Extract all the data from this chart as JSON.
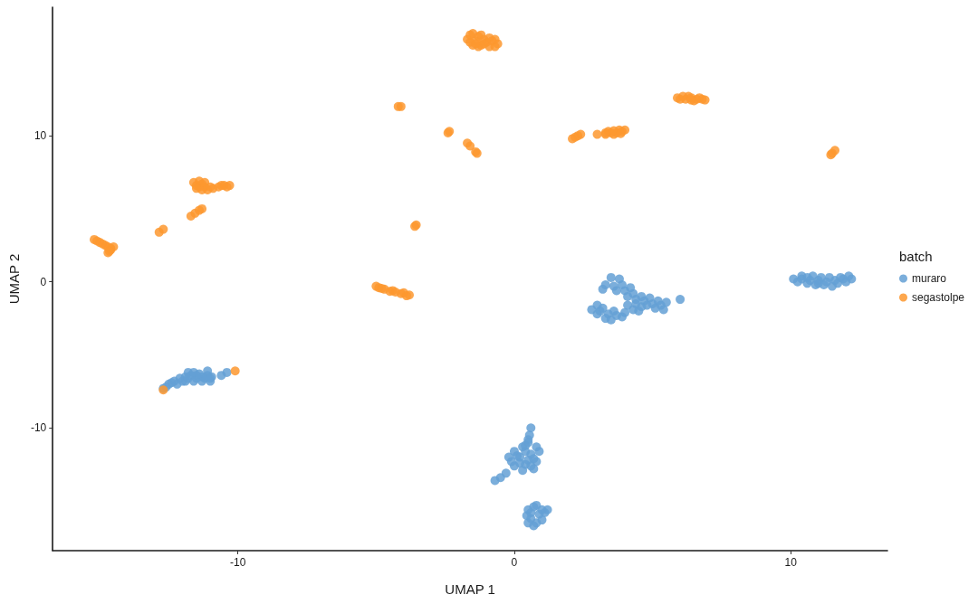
{
  "chart_data": {
    "type": "scatter",
    "xlabel": "UMAP 1",
    "ylabel": "UMAP 2",
    "legend_title": "batch",
    "legend": "right",
    "marker": "circle",
    "grid": false,
    "xlim": [
      -16.7,
      13.5
    ],
    "ylim": [
      -18.4,
      18.8
    ],
    "xticks": [
      -10,
      0,
      10
    ],
    "yticks": [
      -10,
      0,
      10
    ],
    "series": [
      {
        "name": "muraro",
        "color": "#64a0d5",
        "x": [
          -12.7,
          -12.5,
          -12.3,
          -12.1,
          -11.9,
          -11.7,
          -11.5,
          -11.3,
          -11.1,
          -10.95,
          -11.9,
          -11.6,
          -11.3,
          -11.0,
          -12.2,
          -10.6,
          -10.4,
          -11.1,
          -11.8,
          -12.4,
          -12.0,
          -11.8,
          -11.5,
          -11.2,
          -11.0,
          -11.6,
          -11.4,
          -12.6,
          0.6,
          0.55,
          0.5,
          0.3,
          0.0,
          -0.2,
          0.2,
          0.6,
          0.8,
          0.4,
          0.0,
          0.7,
          -0.3,
          -0.5,
          -0.7,
          0.3,
          0.9,
          0.1,
          0.4,
          0.7,
          0.2,
          0.5,
          0.8,
          0.4,
          -0.1,
          0.6,
          0.5,
          0.5,
          0.8,
          1.1,
          0.6,
          1.0,
          0.7,
          0.45,
          1.2,
          0.6,
          0.9,
          0.8,
          0.5,
          1.0,
          0.7,
          3.2,
          3.5,
          3.8,
          3.6,
          4.0,
          4.3,
          4.6,
          4.9,
          5.2,
          5.5,
          5.4,
          4.8,
          2.8,
          3.1,
          3.4,
          3.7,
          4.0,
          4.3,
          4.6,
          3.5,
          3.9,
          3.3,
          3.7,
          4.1,
          4.4,
          4.7,
          5.0,
          5.3,
          3.0,
          3.3,
          3.6,
          4.1,
          4.4,
          5.1,
          3.9,
          4.2,
          3.2,
          4.5,
          3.0,
          6.0,
          10.1,
          10.4,
          10.7,
          11.0,
          11.3,
          11.6,
          11.9,
          12.2,
          10.8,
          11.2,
          11.5,
          11.8,
          10.4,
          10.25,
          10.6,
          10.9,
          11.1,
          11.4,
          11.7,
          12.0,
          10.6,
          11.0,
          12.1
        ],
        "values": [
          -7.3,
          -7.0,
          -6.8,
          -6.6,
          -6.5,
          -6.4,
          -6.4,
          -6.5,
          -6.4,
          -6.5,
          -6.8,
          -6.8,
          -6.8,
          -6.8,
          -7.0,
          -6.4,
          -6.2,
          -6.1,
          -6.2,
          -6.9,
          -6.8,
          -6.6,
          -6.6,
          -6.6,
          -6.6,
          -6.2,
          -6.3,
          -7.2,
          -10.0,
          -10.5,
          -11.0,
          -11.3,
          -11.6,
          -12.0,
          -12.0,
          -11.8,
          -12.3,
          -12.5,
          -12.6,
          -12.8,
          -13.1,
          -13.4,
          -13.6,
          -12.9,
          -11.6,
          -11.9,
          -11.6,
          -12.1,
          -12.4,
          -12.2,
          -11.3,
          -11.2,
          -12.3,
          -12.6,
          -10.8,
          -15.6,
          -15.3,
          -15.8,
          -16.2,
          -16.3,
          -16.7,
          -16.0,
          -15.6,
          -15.8,
          -15.9,
          -16.5,
          -16.5,
          -15.6,
          -15.4,
          -0.5,
          0.3,
          0.2,
          -0.3,
          -0.6,
          -0.8,
          -1.0,
          -1.1,
          -1.3,
          -1.4,
          -1.9,
          -1.6,
          -1.9,
          -2.0,
          -2.2,
          -2.3,
          -2.1,
          -1.9,
          -1.7,
          -2.6,
          -2.4,
          -0.2,
          -0.6,
          -1.0,
          -1.2,
          -1.3,
          -1.5,
          -1.6,
          -2.2,
          -2.5,
          -2.0,
          -1.6,
          -1.5,
          -1.8,
          -0.2,
          -0.4,
          -1.8,
          -2.0,
          -1.6,
          -1.2,
          0.2,
          0.2,
          0.1,
          0.1,
          0.0,
          0.1,
          0.2,
          0.2,
          0.4,
          -0.2,
          -0.3,
          0.3,
          0.4,
          0.0,
          -0.1,
          -0.2,
          0.3,
          0.3,
          -0.1,
          0.0,
          0.3,
          -0.1,
          0.4
        ]
      },
      {
        "name": "segastolpe",
        "color": "#fd982f",
        "x": [
          -1.7,
          -1.5,
          -1.4,
          -1.2,
          -1.0,
          -0.8,
          -0.6,
          -1.3,
          -0.9,
          -1.5,
          -1.6,
          -1.3,
          -1.1,
          -0.7,
          -1.2,
          -1.6,
          -0.9,
          -1.4,
          -0.7,
          -1.1,
          -4.2,
          -4.1,
          -2.4,
          -2.35,
          -1.7,
          -1.6,
          -1.4,
          -1.35,
          -3.6,
          -3.55,
          2.1,
          2.3,
          2.4,
          3.0,
          3.3,
          3.5,
          3.7,
          3.9,
          4.0,
          3.6,
          3.4,
          3.8,
          3.3,
          3.6,
          3.85,
          2.2,
          5.9,
          6.2,
          6.4,
          6.6,
          6.8,
          6.3,
          6.5,
          6.0,
          6.1,
          6.7,
          6.4,
          6.9,
          11.5,
          11.6,
          11.45,
          -11.6,
          -11.5,
          -11.3,
          -11.2,
          -11.1,
          -11.3,
          -10.9,
          -10.7,
          -10.5,
          -10.3,
          -11.4,
          -11.4,
          -11.2,
          -11.5,
          -11.0,
          -10.4,
          -10.6,
          -11.7,
          -11.55,
          -11.4,
          -11.3,
          -12.85,
          -12.7,
          -15.2,
          -15.0,
          -14.8,
          -14.6,
          -14.5,
          -14.7,
          -14.6,
          -15.1,
          -14.9,
          -14.7,
          -14.65,
          -5.0,
          -4.7,
          -4.4,
          -4.1,
          -3.8,
          -4.9,
          -4.5,
          -4.8,
          -4.3,
          -4.0,
          -3.9,
          -12.7,
          -10.1
        ],
        "values": [
          16.6,
          17.0,
          16.5,
          16.2,
          16.4,
          16.5,
          16.3,
          16.8,
          16.1,
          16.2,
          16.4,
          16.1,
          16.6,
          16.1,
          16.9,
          16.9,
          16.7,
          16.3,
          16.6,
          16.3,
          12.0,
          12.0,
          10.2,
          10.3,
          9.5,
          9.3,
          8.9,
          8.8,
          3.8,
          3.9,
          9.8,
          10.0,
          10.1,
          10.1,
          10.1,
          10.2,
          10.2,
          10.3,
          10.4,
          10.1,
          10.3,
          10.4,
          10.2,
          10.35,
          10.15,
          9.9,
          12.6,
          12.5,
          12.6,
          12.5,
          12.5,
          12.7,
          12.4,
          12.5,
          12.7,
          12.6,
          12.45,
          12.45,
          8.8,
          9.0,
          8.7,
          6.8,
          6.6,
          6.7,
          6.5,
          6.3,
          6.3,
          6.4,
          6.5,
          6.6,
          6.6,
          6.9,
          6.5,
          6.8,
          6.4,
          6.5,
          6.5,
          6.6,
          4.5,
          4.7,
          4.9,
          5.0,
          3.4,
          3.6,
          2.9,
          2.7,
          2.5,
          2.3,
          2.4,
          2.0,
          2.2,
          2.8,
          2.6,
          2.4,
          2.1,
          -0.3,
          -0.5,
          -0.6,
          -0.8,
          -0.9,
          -0.4,
          -0.65,
          -0.45,
          -0.7,
          -0.75,
          -0.95,
          -7.4,
          -6.1
        ]
      }
    ]
  }
}
